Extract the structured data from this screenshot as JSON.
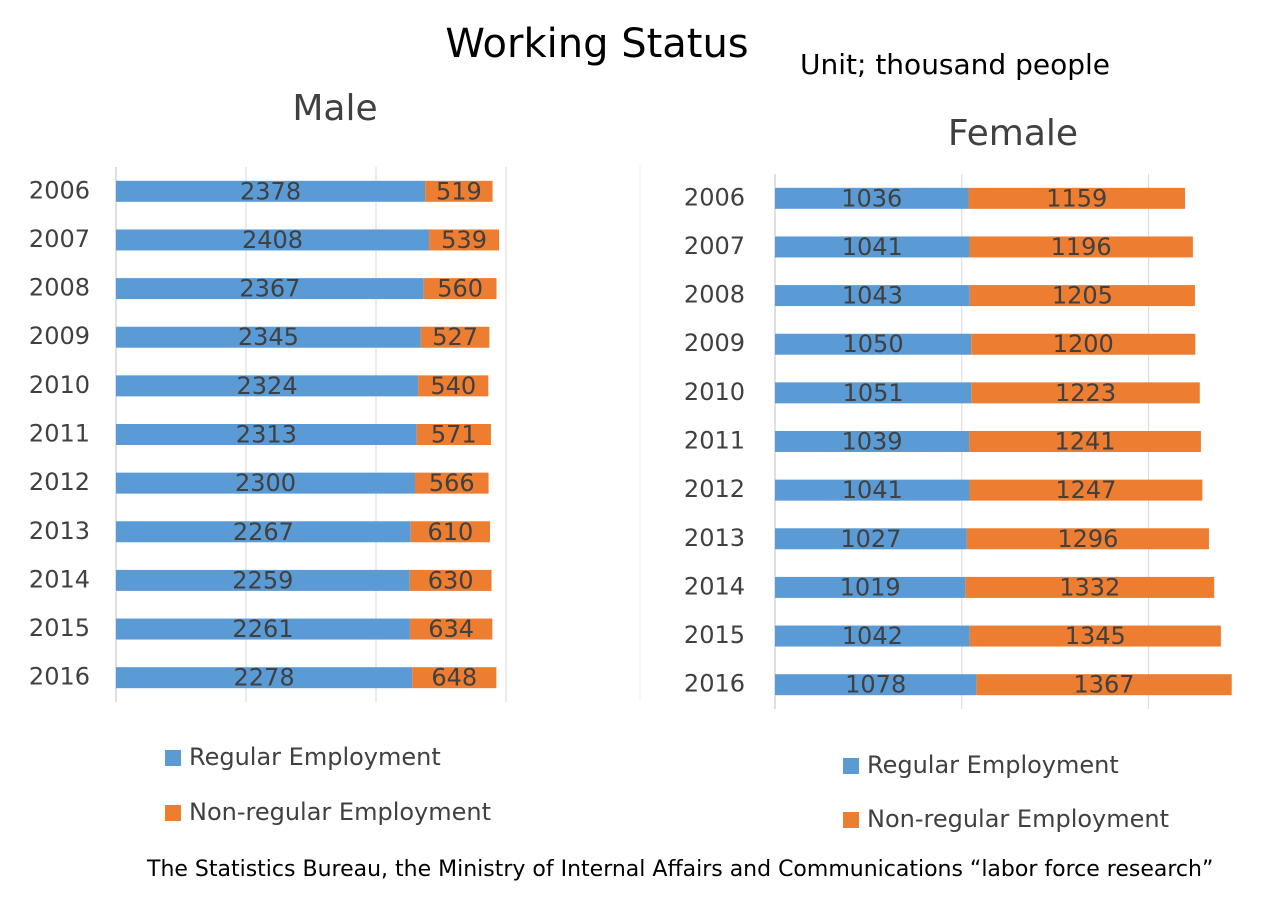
{
  "title": "Working Status",
  "unit_note": "Unit; thousand people",
  "source": "The Statistics Bureau, the Ministry of Internal Affairs and Communications  “labor force research”",
  "chart_data": [
    {
      "type": "barh",
      "stacked": true,
      "title": "Male",
      "categories": [
        "2006",
        "2007",
        "2008",
        "2009",
        "2010",
        "2011",
        "2012",
        "2013",
        "2014",
        "2015",
        "2016"
      ],
      "series": [
        {
          "name": "Regular Employment",
          "color": "#5b9bd5",
          "values": [
            2378,
            2408,
            2367,
            2345,
            2324,
            2313,
            2300,
            2267,
            2259,
            2261,
            2278
          ]
        },
        {
          "name": "Non-regular Employment",
          "color": "#ed7d31",
          "values": [
            519,
            539,
            560,
            527,
            540,
            571,
            566,
            610,
            630,
            634,
            648
          ]
        }
      ],
      "xlim": [
        0,
        3000
      ],
      "xticks": [
        0,
        1000,
        2000,
        3000
      ],
      "grid": true
    },
    {
      "type": "barh",
      "stacked": true,
      "title": "Female",
      "categories": [
        "2006",
        "2007",
        "2008",
        "2009",
        "2010",
        "2011",
        "2012",
        "2013",
        "2014",
        "2015",
        "2016"
      ],
      "series": [
        {
          "name": "Regular Employment",
          "color": "#5b9bd5",
          "values": [
            1036,
            1041,
            1043,
            1050,
            1051,
            1039,
            1041,
            1027,
            1019,
            1042,
            1078
          ]
        },
        {
          "name": "Non-regular Employment",
          "color": "#ed7d31",
          "values": [
            1159,
            1196,
            1205,
            1200,
            1223,
            1241,
            1247,
            1296,
            1332,
            1345,
            1367
          ]
        }
      ],
      "xlim": [
        0,
        2500
      ],
      "xticks": [
        0,
        1000,
        2000
      ],
      "grid": true
    }
  ]
}
